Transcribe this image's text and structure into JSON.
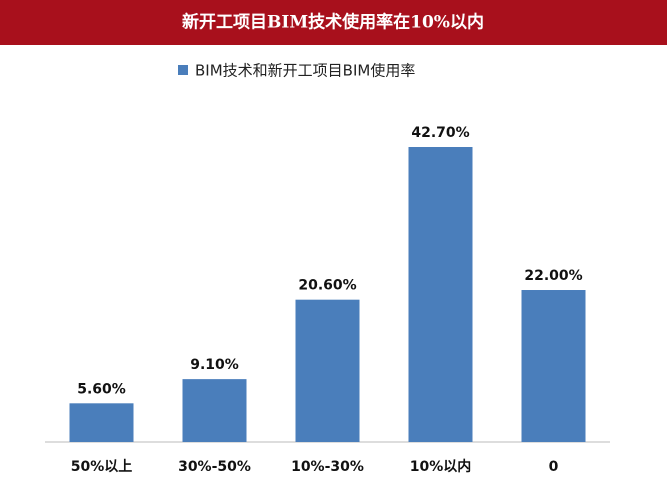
{
  "chart_data": {
    "type": "bar",
    "title": "新开工项目BIM技术使用率在10%以内",
    "categories": [
      "50%以上",
      "30%-50%",
      "10%-30%",
      "10%以内",
      "0"
    ],
    "series": [
      {
        "name": "BIM技术和新开工项目BIM使用率",
        "color": "#4a7ebb",
        "values": [
          5.6,
          9.1,
          20.6,
          42.7,
          22.0
        ],
        "value_labels": [
          "5.60%",
          "9.10%",
          "20.60%",
          "42.70%",
          "22.00%"
        ]
      }
    ],
    "legend": "top"
  }
}
